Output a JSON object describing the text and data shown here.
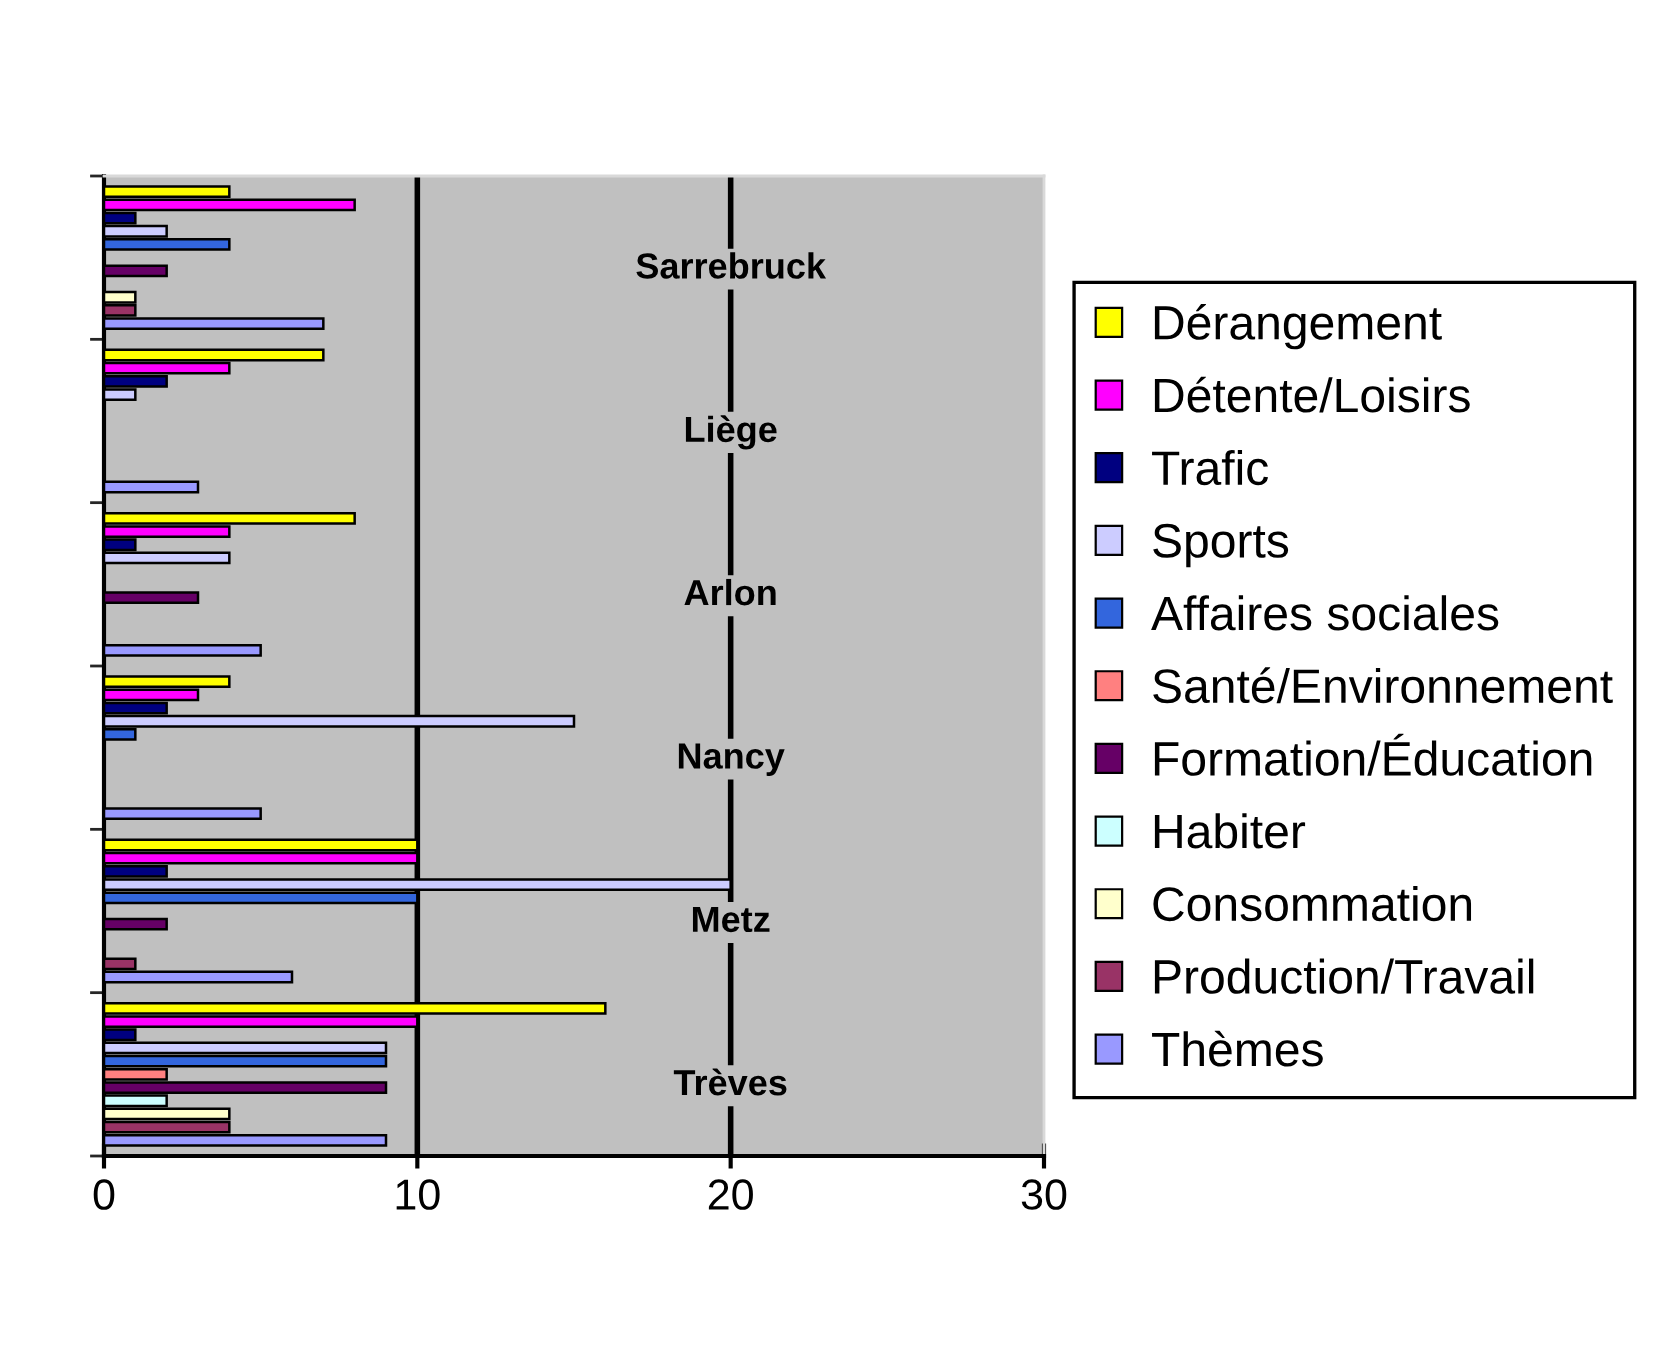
{
  "chart_data": {
    "type": "bar",
    "orientation": "horizontal",
    "categories": [
      "Sarrebruck",
      "Liège",
      "Arlon",
      "Nancy",
      "Metz",
      "Trèves"
    ],
    "series": [
      {
        "name": "Dérangement",
        "color": "#ffff00",
        "values": [
          4,
          7,
          8,
          4,
          10,
          16
        ]
      },
      {
        "name": "Détente/Loisirs",
        "color": "#ff00ff",
        "values": [
          8,
          4,
          4,
          3,
          10,
          10
        ]
      },
      {
        "name": "Trafic",
        "color": "#000080",
        "values": [
          1,
          2,
          1,
          2,
          2,
          1
        ]
      },
      {
        "name": "Sports",
        "color": "#ccccff",
        "values": [
          2,
          1,
          4,
          15,
          20,
          9
        ]
      },
      {
        "name": "Affaires sociales",
        "color": "#3366dd",
        "values": [
          4,
          null,
          null,
          1,
          10,
          9
        ]
      },
      {
        "name": "Santé/Environnement",
        "color": "#ff8080",
        "values": [
          null,
          null,
          null,
          null,
          null,
          2
        ]
      },
      {
        "name": "Formation/Éducation",
        "color": "#660066",
        "values": [
          2,
          null,
          3,
          null,
          2,
          9
        ]
      },
      {
        "name": "Habiter",
        "color": "#ccffff",
        "values": [
          null,
          null,
          null,
          null,
          null,
          2
        ]
      },
      {
        "name": "Consommation",
        "color": "#ffffcc",
        "values": [
          1,
          null,
          null,
          null,
          null,
          4
        ]
      },
      {
        "name": "Production/Travail",
        "color": "#993366",
        "values": [
          1,
          null,
          null,
          null,
          1,
          4
        ]
      },
      {
        "name": "Thèmes",
        "color": "#9999ff",
        "values": [
          7,
          3,
          5,
          5,
          6,
          9
        ]
      }
    ],
    "xlim": [
      0,
      30
    ],
    "xticks": [
      0,
      10,
      20,
      30
    ],
    "grid": "x",
    "legend": "right"
  }
}
